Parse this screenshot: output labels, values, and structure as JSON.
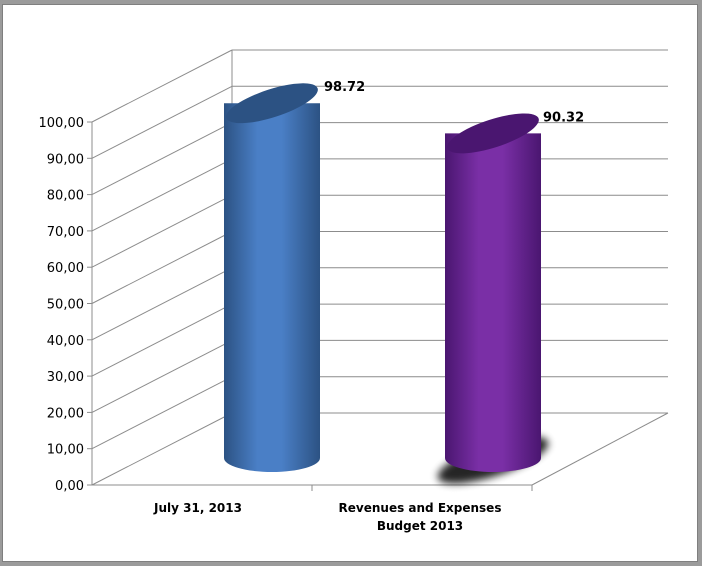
{
  "chart_data": {
    "type": "bar",
    "style": "3d-cylinder",
    "categories": [
      "July 31, 2013",
      "Revenues and Expenses\nBudget 2013"
    ],
    "values": [
      98.72,
      90.32
    ],
    "data_labels": [
      "98.72",
      "90.32"
    ],
    "tick_labels": [
      "0,00",
      "10,00",
      "20,00",
      "30,00",
      "40,00",
      "50,00",
      "60,00",
      "70,00",
      "80,00",
      "90,00",
      "100,00"
    ],
    "ylim": [
      0,
      100
    ],
    "ystep": 10,
    "grid": true,
    "legend": "none",
    "colors": [
      "#4a7fc6",
      "#7a2fa6"
    ],
    "dark_colors": [
      "#2c5283",
      "#4a1670"
    ]
  }
}
